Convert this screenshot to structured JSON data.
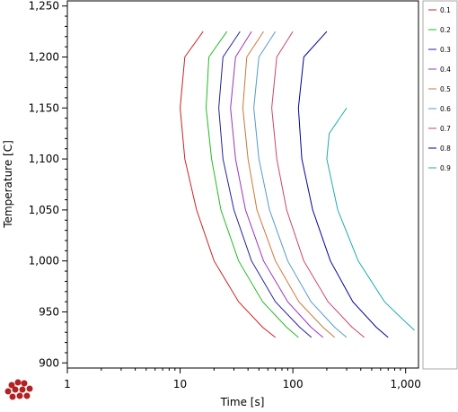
{
  "chart_data": {
    "type": "line",
    "title": "",
    "xlabel": "Time [s]",
    "ylabel": "Temperature [C]",
    "x_scale": "log",
    "xlim": [
      1,
      1300
    ],
    "ylim": [
      895,
      1255
    ],
    "x_ticks": [
      1,
      10,
      100,
      1000
    ],
    "x_tick_labels": [
      "1",
      "10",
      "100",
      "1,000"
    ],
    "y_ticks": [
      900,
      950,
      1000,
      1050,
      1100,
      1150,
      1200,
      1250
    ],
    "y_tick_labels": [
      "900",
      "950",
      "1,000",
      "1,050",
      "1,100",
      "1,150",
      "1,200",
      "1,250"
    ],
    "grid": false,
    "legend_position": "right",
    "series": [
      {
        "name": "0.1",
        "color": "#cc2222",
        "points": [
          [
            16,
            1225
          ],
          [
            11,
            1200
          ],
          [
            10,
            1150
          ],
          [
            11,
            1100
          ],
          [
            14,
            1050
          ],
          [
            20,
            1000
          ],
          [
            33,
            960
          ],
          [
            54,
            935
          ],
          [
            70,
            925
          ]
        ]
      },
      {
        "name": "0.2",
        "color": "#22bb22",
        "points": [
          [
            26,
            1225
          ],
          [
            18,
            1200
          ],
          [
            17,
            1150
          ],
          [
            19,
            1100
          ],
          [
            23,
            1050
          ],
          [
            33,
            1000
          ],
          [
            54,
            960
          ],
          [
            88,
            935
          ],
          [
            112,
            925
          ]
        ]
      },
      {
        "name": "0.3",
        "color": "#222299",
        "points": [
          [
            34,
            1225
          ],
          [
            24,
            1200
          ],
          [
            22,
            1150
          ],
          [
            24,
            1100
          ],
          [
            30,
            1050
          ],
          [
            43,
            1000
          ],
          [
            70,
            960
          ],
          [
            115,
            935
          ],
          [
            146,
            925
          ]
        ]
      },
      {
        "name": "0.4",
        "color": "#9933bb",
        "points": [
          [
            43,
            1225
          ],
          [
            31,
            1200
          ],
          [
            28,
            1150
          ],
          [
            31,
            1100
          ],
          [
            38,
            1050
          ],
          [
            55,
            1000
          ],
          [
            90,
            960
          ],
          [
            145,
            935
          ],
          [
            185,
            925
          ]
        ]
      },
      {
        "name": "0.5",
        "color": "#cc7733",
        "points": [
          [
            55,
            1225
          ],
          [
            39,
            1200
          ],
          [
            36,
            1150
          ],
          [
            40,
            1100
          ],
          [
            48,
            1050
          ],
          [
            70,
            1000
          ],
          [
            113,
            960
          ],
          [
            185,
            935
          ],
          [
            235,
            925
          ]
        ]
      },
      {
        "name": "0.6",
        "color": "#5599cc",
        "points": [
          [
            70,
            1225
          ],
          [
            50,
            1200
          ],
          [
            45,
            1150
          ],
          [
            50,
            1100
          ],
          [
            62,
            1050
          ],
          [
            90,
            1000
          ],
          [
            145,
            960
          ],
          [
            235,
            935
          ],
          [
            300,
            925
          ]
        ]
      },
      {
        "name": "0.7",
        "color": "#cc4466",
        "points": [
          [
            100,
            1225
          ],
          [
            72,
            1200
          ],
          [
            65,
            1150
          ],
          [
            72,
            1100
          ],
          [
            88,
            1050
          ],
          [
            125,
            1000
          ],
          [
            205,
            960
          ],
          [
            335,
            935
          ],
          [
            430,
            925
          ]
        ]
      },
      {
        "name": "0.8",
        "color": "#000099",
        "points": [
          [
            200,
            1225
          ],
          [
            125,
            1200
          ],
          [
            112,
            1150
          ],
          [
            120,
            1100
          ],
          [
            150,
            1050
          ],
          [
            215,
            1000
          ],
          [
            340,
            960
          ],
          [
            550,
            935
          ],
          [
            700,
            925
          ]
        ]
      },
      {
        "name": "0.9",
        "color": "#22aaaa",
        "points": [
          [
            300,
            1150
          ],
          [
            210,
            1125
          ],
          [
            200,
            1100
          ],
          [
            250,
            1050
          ],
          [
            380,
            1000
          ],
          [
            650,
            960
          ],
          [
            1000,
            940
          ],
          [
            1200,
            932
          ]
        ]
      }
    ]
  },
  "icons": {
    "logo": "red-spheres-logo-icon"
  }
}
